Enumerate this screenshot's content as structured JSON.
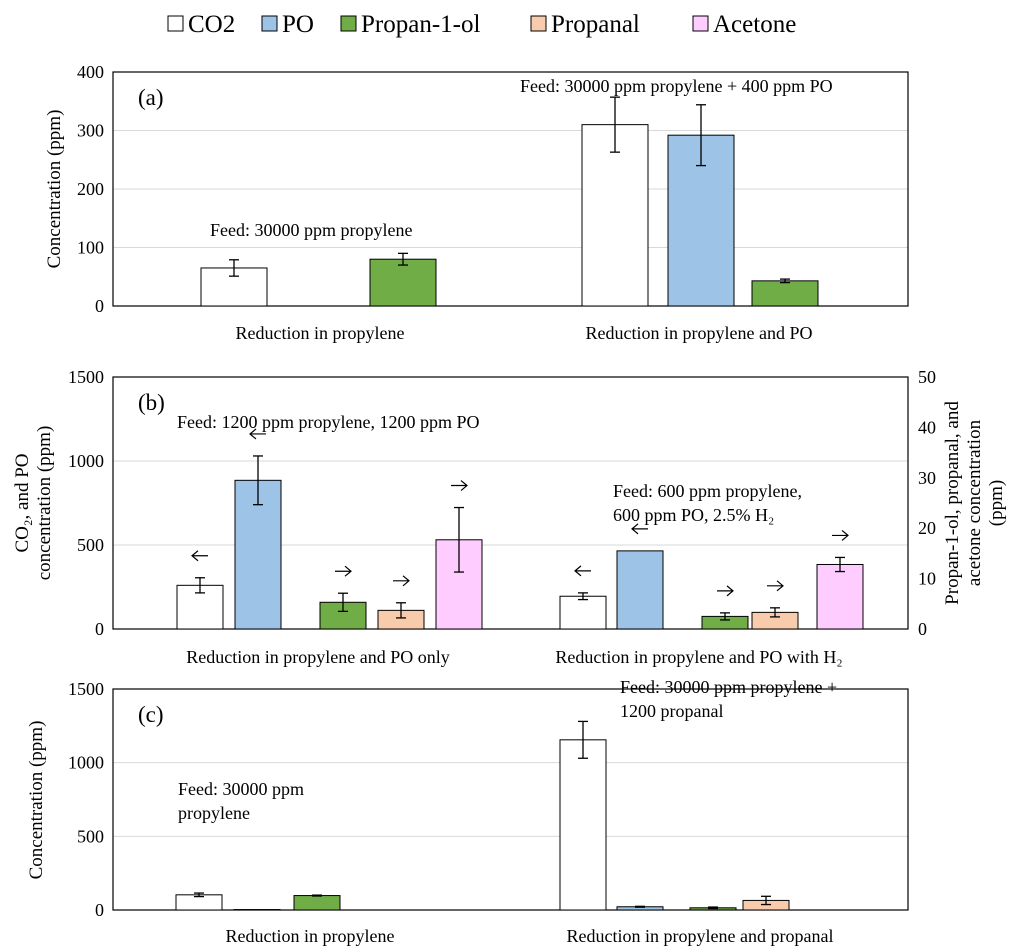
{
  "legend": [
    {
      "label": "CO2",
      "color": "#ffffff"
    },
    {
      "label": "PO",
      "color": "#9dc3e6"
    },
    {
      "label": "Propan-1-ol",
      "color": "#70ad47"
    },
    {
      "label": "Propanal",
      "color": "#f8cbad"
    },
    {
      "label": "Acetone",
      "color": "#ffccff"
    }
  ],
  "chart_data": [
    {
      "type": "bar",
      "panel_label": "(a)",
      "ylabel": "Concentration (ppm)",
      "ylim": [
        0,
        400
      ],
      "yticks": [
        0,
        100,
        200,
        300,
        400
      ],
      "grid": true,
      "categories": [
        "Reduction in propylene",
        "Reduction in propylene and PO"
      ],
      "annotations": [
        "Feed: 30000 ppm propylene",
        "Feed: 30000 ppm propylene + 400 ppm PO"
      ],
      "groups": [
        {
          "category": "Reduction in propylene",
          "bars": [
            {
              "series": "CO2",
              "value": 65,
              "err": 14
            },
            {
              "series": "Propan-1-ol",
              "value": 80,
              "err": 10
            }
          ]
        },
        {
          "category": "Reduction in propylene and PO",
          "bars": [
            {
              "series": "CO2",
              "value": 310,
              "err": 47
            },
            {
              "series": "PO",
              "value": 292,
              "err": 52
            },
            {
              "series": "Propan-1-ol",
              "value": 43,
              "err": 3
            }
          ]
        }
      ]
    },
    {
      "type": "bar",
      "panel_label": "(b)",
      "ylabel": "CO₂, and PO\nconcentration (ppm)",
      "ylabel_right": "Propan-1-ol, propanal, and\nacetone concentration\n(ppm)",
      "ylim": [
        0,
        1500
      ],
      "yticks": [
        0,
        500,
        1000,
        1500
      ],
      "ylim_right": [
        0,
        50
      ],
      "yticks_right": [
        0,
        10,
        20,
        30,
        40,
        50
      ],
      "grid": true,
      "categories": [
        "Reduction in propylene and PO only",
        "Reduction in propylene and PO with H₂"
      ],
      "annotations": [
        "Feed: 1200 ppm propylene, 1200 ppm PO",
        "Feed: 600 ppm propylene,\n600 ppm PO, 2.5% H₂"
      ],
      "groups": [
        {
          "category": "Reduction in propylene and PO only",
          "bars": [
            {
              "series": "CO2",
              "value": 260,
              "err": 45,
              "axis": "left"
            },
            {
              "series": "PO",
              "value": 885,
              "err": 145,
              "axis": "left"
            },
            {
              "series": "Propan-1-ol",
              "value": 5.3,
              "err": 1.8,
              "axis": "right"
            },
            {
              "series": "Propanal",
              "value": 3.7,
              "err": 1.5,
              "axis": "right"
            },
            {
              "series": "Acetone",
              "value": 17.7,
              "err": 6.4,
              "axis": "right"
            }
          ]
        },
        {
          "category": "Reduction in propylene and PO with H₂",
          "bars": [
            {
              "series": "CO2",
              "value": 195,
              "err": 20,
              "axis": "left"
            },
            {
              "series": "PO",
              "value": 465,
              "err": 0,
              "axis": "left"
            },
            {
              "series": "Propan-1-ol",
              "value": 2.5,
              "err": 0.7,
              "axis": "right"
            },
            {
              "series": "Propanal",
              "value": 3.3,
              "err": 0.9,
              "axis": "right"
            },
            {
              "series": "Acetone",
              "value": 12.8,
              "err": 1.4,
              "axis": "right"
            }
          ]
        }
      ]
    },
    {
      "type": "bar",
      "panel_label": "(c)",
      "ylabel": "Concentration (ppm)",
      "ylim": [
        0,
        1500
      ],
      "yticks": [
        0,
        500,
        1000,
        1500
      ],
      "grid": true,
      "categories": [
        "Reduction in propylene",
        "Reduction in propylene and propanal"
      ],
      "annotations": [
        "Feed: 30000 ppm\npropylene",
        "Feed: 30000 ppm propylene +\n1200 propanal"
      ],
      "groups": [
        {
          "category": "Reduction in propylene",
          "bars": [
            {
              "series": "CO2",
              "value": 103,
              "err": 12
            },
            {
              "series": "PO",
              "value": 3,
              "err": 0
            },
            {
              "series": "Propan-1-ol",
              "value": 98,
              "err": 3
            }
          ]
        },
        {
          "category": "Reduction in propylene and propanal",
          "bars": [
            {
              "series": "CO2",
              "value": 1155,
              "err": 125
            },
            {
              "series": "PO",
              "value": 22,
              "err": 3
            },
            {
              "series": "Propan-1-ol",
              "value": 15,
              "err": 5
            },
            {
              "series": "Propanal",
              "value": 65,
              "err": 28
            }
          ]
        }
      ]
    }
  ]
}
